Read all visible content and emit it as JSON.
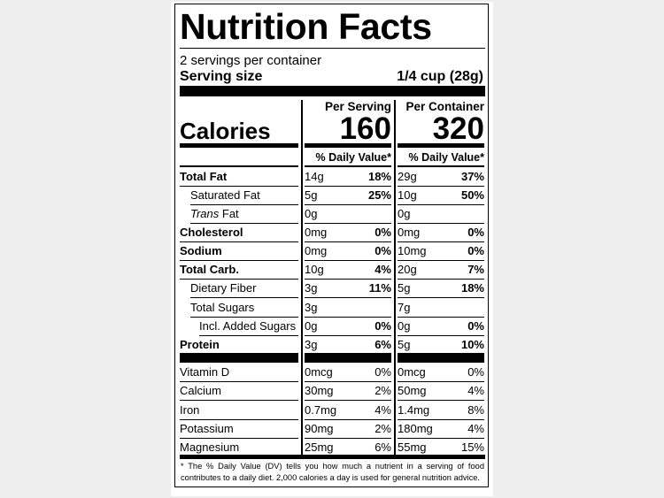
{
  "title": "Nutrition Facts",
  "servings_per_container": "2 servings per container",
  "serving_size_label": "Serving size",
  "serving_size_value": "1/4 cup (28g)",
  "columns": {
    "per_serving": "Per Serving",
    "per_container": "Per Container"
  },
  "calories": {
    "label": "Calories",
    "per_serving": "160",
    "per_container": "320"
  },
  "daily_value_header": "% Daily Value*",
  "nutrients": [
    {
      "name": "Total Fat",
      "bold": true,
      "indent": 0,
      "serving_amount": "14g",
      "serving_dv": "18%",
      "container_amount": "29g",
      "container_dv": "37%"
    },
    {
      "name": "Saturated Fat",
      "bold": false,
      "indent": 1,
      "serving_amount": "5g",
      "serving_dv": "25%",
      "container_amount": "10g",
      "container_dv": "50%"
    },
    {
      "name": "Trans Fat",
      "bold": false,
      "indent": 1,
      "italic_word": "Trans",
      "rest": " Fat",
      "serving_amount": "0g",
      "serving_dv": "",
      "container_amount": "0g",
      "container_dv": ""
    },
    {
      "name": "Cholesterol",
      "bold": true,
      "indent": 0,
      "serving_amount": "0mg",
      "serving_dv": "0%",
      "container_amount": "0mg",
      "container_dv": "0%"
    },
    {
      "name": "Sodium",
      "bold": true,
      "indent": 0,
      "serving_amount": "0mg",
      "serving_dv": "0%",
      "container_amount": "10mg",
      "container_dv": "0%"
    },
    {
      "name": "Total Carb.",
      "bold": true,
      "indent": 0,
      "serving_amount": "10g",
      "serving_dv": "4%",
      "container_amount": "20g",
      "container_dv": "7%"
    },
    {
      "name": "Dietary Fiber",
      "bold": false,
      "indent": 1,
      "serving_amount": "3g",
      "serving_dv": "11%",
      "container_amount": "5g",
      "container_dv": "18%"
    },
    {
      "name": "Total Sugars",
      "bold": false,
      "indent": 1,
      "serving_amount": "3g",
      "serving_dv": "",
      "container_amount": "7g",
      "container_dv": ""
    },
    {
      "name": "Incl. Added Sugars",
      "bold": false,
      "indent": 2,
      "serving_amount": "0g",
      "serving_dv": "0%",
      "container_amount": "0g",
      "container_dv": "0%"
    },
    {
      "name": "Protein",
      "bold": true,
      "indent": 0,
      "serving_amount": "3g",
      "serving_dv": "6%",
      "container_amount": "5g",
      "container_dv": "10%"
    }
  ],
  "vitamins": [
    {
      "name": "Vitamin D",
      "serving_amount": "0mcg",
      "serving_dv": "0%",
      "container_amount": "0mcg",
      "container_dv": "0%"
    },
    {
      "name": "Calcium",
      "serving_amount": "30mg",
      "serving_dv": "2%",
      "container_amount": "50mg",
      "container_dv": "4%"
    },
    {
      "name": "Iron",
      "serving_amount": "0.7mg",
      "serving_dv": "4%",
      "container_amount": "1.4mg",
      "container_dv": "8%"
    },
    {
      "name": "Potassium",
      "serving_amount": "90mg",
      "serving_dv": "2%",
      "container_amount": "180mg",
      "container_dv": "4%"
    },
    {
      "name": "Magnesium",
      "serving_amount": "25mg",
      "serving_dv": "6%",
      "container_amount": "55mg",
      "container_dv": "15%"
    }
  ],
  "footnote": "* The % Daily Value (DV) tells you how much a nutrient in a serving of food contributes to a daily diet. 2,000 calories a day is used for general nutrition advice."
}
